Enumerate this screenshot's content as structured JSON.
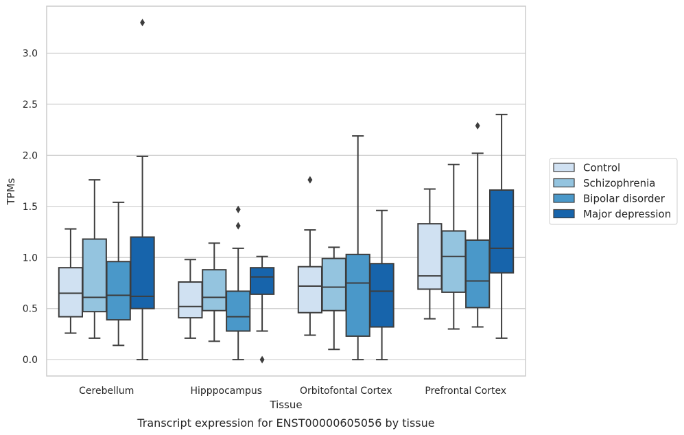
{
  "chart_data": {
    "type": "boxplot",
    "title": "",
    "caption": "Transcript expression for ENST00000605056 by tissue",
    "xlabel": "Tissue",
    "ylabel": "TPMs",
    "ylim": [
      -0.16,
      3.46
    ],
    "yticks": [
      0.0,
      0.5,
      1.0,
      1.5,
      2.0,
      2.5,
      3.0
    ],
    "ytick_labels": [
      "0.0",
      "0.5",
      "1.0",
      "1.5",
      "2.0",
      "2.5",
      "3.0"
    ],
    "grid": "horizontal",
    "legend_placement": "right",
    "categories": [
      "Cerebellum",
      "Hipppocampus",
      "Orbitofontal Cortex",
      "Prefrontal Cortex"
    ],
    "series": [
      {
        "name": "Control",
        "color": "#d0e1f2",
        "boxes": [
          {
            "whislo": 0.26,
            "q1": 0.42,
            "med": 0.65,
            "q3": 0.9,
            "whishi": 1.28,
            "fliers": []
          },
          {
            "whislo": 0.21,
            "q1": 0.41,
            "med": 0.52,
            "q3": 0.76,
            "whishi": 0.98,
            "fliers": []
          },
          {
            "whislo": 0.24,
            "q1": 0.46,
            "med": 0.72,
            "q3": 0.91,
            "whishi": 1.27,
            "fliers": [
              1.76
            ]
          },
          {
            "whislo": 0.4,
            "q1": 0.69,
            "med": 0.82,
            "q3": 1.33,
            "whishi": 1.67,
            "fliers": []
          }
        ]
      },
      {
        "name": "Schizophrenia",
        "color": "#94c4df",
        "boxes": [
          {
            "whislo": 0.21,
            "q1": 0.47,
            "med": 0.61,
            "q3": 1.18,
            "whishi": 1.76,
            "fliers": []
          },
          {
            "whislo": 0.18,
            "q1": 0.48,
            "med": 0.61,
            "q3": 0.88,
            "whishi": 1.14,
            "fliers": []
          },
          {
            "whislo": 0.1,
            "q1": 0.48,
            "med": 0.71,
            "q3": 0.99,
            "whishi": 1.1,
            "fliers": []
          },
          {
            "whislo": 0.3,
            "q1": 0.66,
            "med": 1.01,
            "q3": 1.26,
            "whishi": 1.91,
            "fliers": []
          }
        ]
      },
      {
        "name": "Bipolar disorder",
        "color": "#4a98c9",
        "boxes": [
          {
            "whislo": 0.14,
            "q1": 0.39,
            "med": 0.63,
            "q3": 0.96,
            "whishi": 1.54,
            "fliers": []
          },
          {
            "whislo": 0.0,
            "q1": 0.28,
            "med": 0.42,
            "q3": 0.67,
            "whishi": 1.09,
            "fliers": [
              1.31,
              1.47
            ]
          },
          {
            "whislo": 0.0,
            "q1": 0.23,
            "med": 0.75,
            "q3": 1.03,
            "whishi": 2.19,
            "fliers": []
          },
          {
            "whislo": 0.32,
            "q1": 0.51,
            "med": 0.77,
            "q3": 1.17,
            "whishi": 2.02,
            "fliers": [
              2.29
            ]
          }
        ]
      },
      {
        "name": "Major depression",
        "color": "#1764ab",
        "boxes": [
          {
            "whislo": 0.0,
            "q1": 0.5,
            "med": 0.62,
            "q3": 1.2,
            "whishi": 1.99,
            "fliers": [
              3.3
            ]
          },
          {
            "whislo": 0.28,
            "q1": 0.64,
            "med": 0.81,
            "q3": 0.9,
            "whishi": 1.01,
            "fliers": [
              0.0
            ]
          },
          {
            "whislo": 0.0,
            "q1": 0.32,
            "med": 0.67,
            "q3": 0.94,
            "whishi": 1.46,
            "fliers": []
          },
          {
            "whislo": 0.21,
            "q1": 0.85,
            "med": 1.09,
            "q3": 1.66,
            "whishi": 2.4,
            "fliers": []
          }
        ]
      }
    ]
  }
}
